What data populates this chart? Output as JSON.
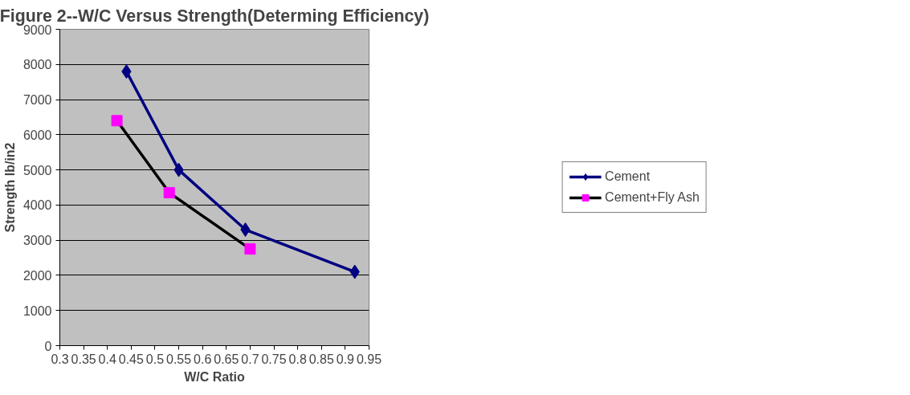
{
  "chart_data": {
    "type": "line",
    "title": "Figure 2--W/C Versus Strength(Determing Efficiency)",
    "xlabel": "W/C Ratio",
    "ylabel": "Strength lb/in2",
    "series": [
      {
        "name": "Cement",
        "color": "#000080",
        "marker": "diamond",
        "x": [
          0.44,
          0.55,
          0.69,
          0.92
        ],
        "values": [
          7800,
          5000,
          3300,
          2100
        ]
      },
      {
        "name": "Cement+Fly Ash",
        "color": "#000000",
        "colors": [
          "#ff00ff",
          "#ff00ff",
          "#ff00ff"
        ],
        "marker": "square",
        "x": [
          0.42,
          0.53,
          0.7
        ],
        "values": [
          6400,
          4350,
          2750
        ]
      }
    ],
    "xlim": [
      0.3,
      0.95
    ],
    "xticks": [
      0.3,
      0.35,
      0.4,
      0.45,
      0.5,
      0.55,
      0.6,
      0.65,
      0.7,
      0.75,
      0.8,
      0.85,
      0.9,
      0.95
    ],
    "ylim": [
      0,
      9000
    ],
    "yticks": [
      0,
      1000,
      2000,
      3000,
      4000,
      5000,
      6000,
      7000,
      8000,
      9000
    ],
    "grid": "y",
    "legend": "right",
    "line_style": "solid"
  }
}
